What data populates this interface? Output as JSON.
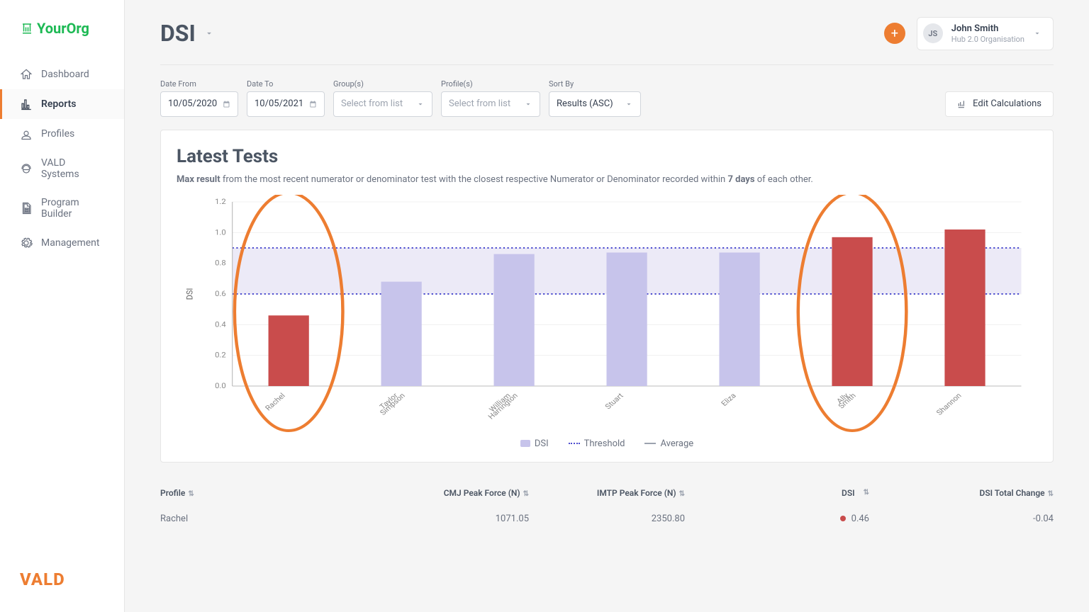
{
  "logo": "YourOrg",
  "footer_logo": "VALD",
  "nav": [
    {
      "icon": "home",
      "label": "Dashboard",
      "active": false
    },
    {
      "icon": "chart",
      "label": "Reports",
      "active": true
    },
    {
      "icon": "users",
      "label": "Profiles",
      "active": false
    },
    {
      "icon": "vald",
      "label": "VALD Systems",
      "active": false
    },
    {
      "icon": "doc",
      "label": "Program Builder",
      "active": false
    },
    {
      "icon": "gear",
      "label": "Management",
      "active": false
    }
  ],
  "page_title": "DSI",
  "user": {
    "initials": "JS",
    "name": "John Smith",
    "org": "Hub 2.0 Organisation"
  },
  "filters": {
    "date_from": {
      "label": "Date From",
      "value": "10/05/2020"
    },
    "date_to": {
      "label": "Date To",
      "value": "10/05/2021"
    },
    "groups": {
      "label": "Group(s)",
      "placeholder": "Select from list"
    },
    "profiles": {
      "label": "Profile(s)",
      "placeholder": "Select from list"
    },
    "sort_by": {
      "label": "Sort By",
      "value": "Results (ASC)"
    }
  },
  "edit_calc_label": "Edit Calculations",
  "card": {
    "title": "Latest Tests",
    "sub_prefix_bold": "Max result",
    "sub_mid": " from the most recent numerator or denominator test with the closest respective Numerator or Denominator recorded within ",
    "sub_bold2": "7 days",
    "sub_suffix": " of each other."
  },
  "chart": {
    "type": "bar",
    "y_label": "DSI",
    "ylim": [
      0,
      1.2
    ],
    "yticks": [
      0.0,
      0.2,
      0.4,
      0.6,
      0.8,
      1.0,
      1.2
    ],
    "threshold_band": {
      "low": 0.6,
      "high": 0.9,
      "fill": "#eceaf7",
      "line_color": "#4d4dcf",
      "line_style": "dotted"
    },
    "bar_width": 0.36,
    "bars": [
      {
        "label": "Rachel",
        "value": 0.46,
        "color": "#c94c4c",
        "highlight": true
      },
      {
        "label": "Taylor Simpson",
        "value": 0.68,
        "color": "#c7c4eb"
      },
      {
        "label": "William Harrington",
        "value": 0.86,
        "color": "#c7c4eb"
      },
      {
        "label": "Stuart",
        "value": 0.87,
        "color": "#c7c4eb"
      },
      {
        "label": "Eliza",
        "value": 0.87,
        "color": "#c7c4eb"
      },
      {
        "label": "Ally Smith",
        "value": 0.97,
        "color": "#c94c4c",
        "highlight": true
      },
      {
        "label": "Shannon",
        "value": 1.02,
        "color": "#c94c4c"
      }
    ],
    "highlight_stroke": "#ed7d31",
    "legend": [
      {
        "swatch": "#c7c4eb",
        "label": "DSI"
      },
      {
        "swatch": "threshold",
        "label": "Threshold"
      },
      {
        "swatch": "average",
        "label": "Average"
      }
    ]
  },
  "table": {
    "columns": [
      "Profile",
      "CMJ Peak Force (N)",
      "IMTP Peak Force (N)",
      "DSI",
      "DSI Total Change"
    ],
    "rows": [
      {
        "profile": "Rachel",
        "cmj": "1071.05",
        "imtp": "2350.80",
        "dsi": "0.46",
        "dsi_flag": true,
        "change": "-0.04"
      }
    ]
  }
}
